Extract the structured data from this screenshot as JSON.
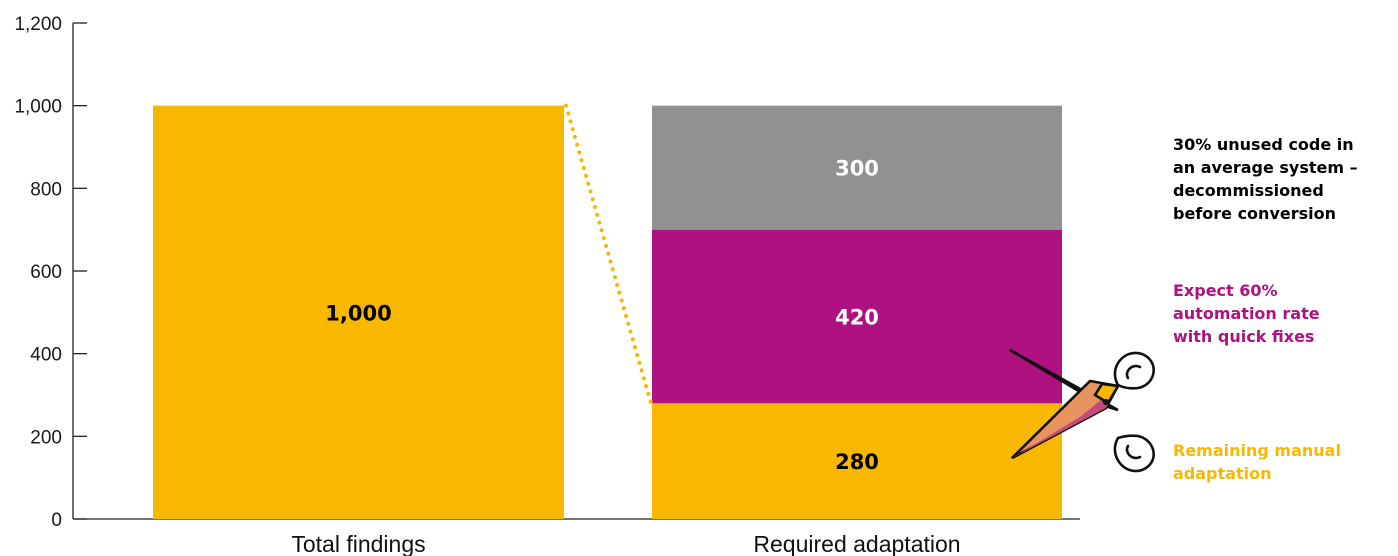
{
  "chart_data": {
    "type": "bar",
    "categories": [
      "Total findings",
      "Required adaptation"
    ],
    "ylim": [
      0,
      1200
    ],
    "yticks": [
      "0",
      "200",
      "400",
      "600",
      "800",
      "1,000",
      "1,200"
    ],
    "ytick_values": [
      0,
      200,
      400,
      600,
      800,
      1000,
      1200
    ],
    "grid": false,
    "bars": [
      {
        "category": "Total findings",
        "value": 1000,
        "label": "1,000",
        "color": "#F9B800",
        "label_color": "#000000"
      }
    ],
    "stacks": [
      {
        "category": "Required adaptation",
        "segments": [
          {
            "value": 280,
            "label": "280",
            "color": "#F9B800",
            "label_color": "#000000"
          },
          {
            "value": 420,
            "label": "420",
            "color": "#AF1180",
            "label_color": "#ffffff"
          },
          {
            "value": 300,
            "label": "300",
            "color": "#919191",
            "label_color": "#ffffff"
          }
        ]
      }
    ],
    "connector": {
      "from_value": 1000,
      "to_value": 280,
      "style": "dotted",
      "color": "#F9B800"
    },
    "annotations": [
      {
        "lines": [
          "30% unused code in",
          "an average system –",
          "decommissioned",
          "before conversion"
        ],
        "color": "#000000",
        "segment": 300
      },
      {
        "lines": [
          "Expect 60%",
          "automation rate",
          "with quick fixes"
        ],
        "color": "#AF1180",
        "segment": 420
      },
      {
        "lines": [
          "Remaining manual",
          "adaptation"
        ],
        "color": "#F9B800",
        "segment": 280
      }
    ],
    "icons": [
      "scissors-icon"
    ]
  }
}
